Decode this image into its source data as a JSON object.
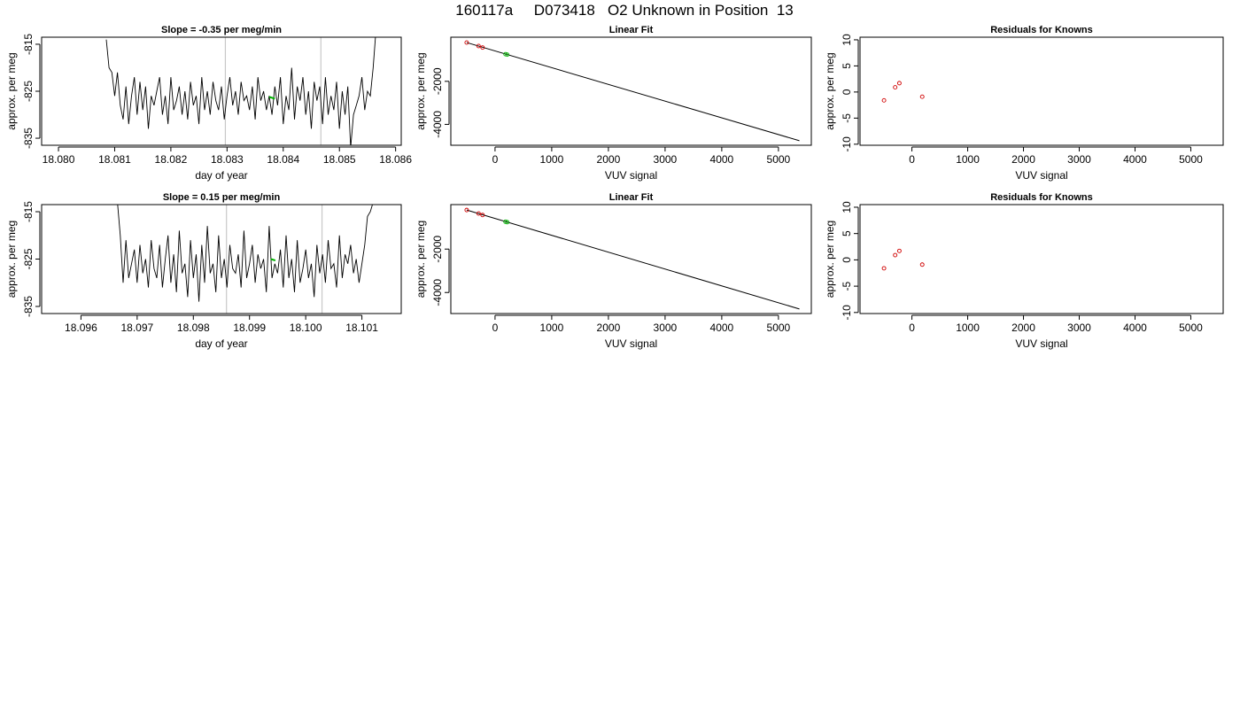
{
  "figure_title": "160117a     D073418   O2 Unknown in Position  13",
  "colors": {
    "trace": "#000000",
    "known_point": "#d00000",
    "unknown_point": "#00b000",
    "marker_line": "#c8c8c8",
    "axis": "#000000"
  },
  "chart_data": [
    {
      "type": "line",
      "title": "Slope =  -0.35  per meg/min",
      "xlabel": "day of year",
      "ylabel": "approx. per meg",
      "xlim": [
        18.0797,
        18.0861
      ],
      "ylim": [
        -836.5,
        -813.5
      ],
      "xticks": [
        18.08,
        18.081,
        18.082,
        18.083,
        18.084,
        18.085,
        18.086
      ],
      "xtick_labels": [
        "18.080",
        "18.081",
        "18.082",
        "18.083",
        "18.084",
        "18.085",
        "18.086"
      ],
      "yticks": [
        -815,
        -825,
        -835
      ],
      "ytick_labels": [
        "-815",
        "-825",
        "-835"
      ],
      "series": [
        {
          "x": [
            18.08085,
            18.0809,
            18.08095,
            18.081,
            18.08105,
            18.0811,
            18.08115,
            18.0812,
            18.08125,
            18.0813,
            18.08135,
            18.0814,
            18.08145,
            18.0815,
            18.08155,
            18.0816,
            18.08165,
            18.0817,
            18.08175,
            18.0818,
            18.08185,
            18.0819,
            18.08195,
            18.082,
            18.08205,
            18.0821,
            18.08215,
            18.0822,
            18.08225,
            18.0823,
            18.08235,
            18.0824,
            18.08245,
            18.0825,
            18.08255,
            18.0826,
            18.08265,
            18.0827,
            18.08275,
            18.0828,
            18.08285,
            18.0829,
            18.08295,
            18.083,
            18.08305,
            18.0831,
            18.08315,
            18.0832,
            18.08325,
            18.0833,
            18.08335,
            18.0834,
            18.08345,
            18.0835,
            18.08355,
            18.0836,
            18.08365,
            18.0837,
            18.08375,
            18.0838,
            18.08385,
            18.0839,
            18.08395,
            18.084,
            18.08405,
            18.0841,
            18.08415,
            18.0842,
            18.08425,
            18.0843,
            18.08435,
            18.0844,
            18.08445,
            18.0845,
            18.08455,
            18.0846,
            18.08465,
            18.0847,
            18.08475,
            18.0848,
            18.08485,
            18.0849,
            18.08495,
            18.085,
            18.08505,
            18.0851,
            18.08515,
            18.0852,
            18.08525,
            18.0853,
            18.08535,
            18.0854,
            18.08545,
            18.0855,
            18.08555,
            18.0856,
            18.08565
          ],
          "y": [
            -814,
            -820,
            -821,
            -826,
            -821,
            -828,
            -831,
            -824,
            -832,
            -826,
            -822,
            -830,
            -823,
            -829,
            -824,
            -833,
            -826,
            -828,
            -825,
            -822,
            -830,
            -826,
            -832,
            -822,
            -829,
            -827,
            -824,
            -830,
            -825,
            -831,
            -823,
            -828,
            -826,
            -832,
            -822,
            -829,
            -825,
            -830,
            -823,
            -827,
            -829,
            -824,
            -831,
            -826,
            -822,
            -828,
            -825,
            -830,
            -823,
            -827,
            -826,
            -829,
            -824,
            -831,
            -822,
            -827,
            -825,
            -829,
            -826,
            -830,
            -824,
            -828,
            -822,
            -832,
            -826,
            -829,
            -820,
            -831,
            -824,
            -827,
            -822,
            -830,
            -825,
            -833,
            -823,
            -827,
            -824,
            -832,
            -822,
            -830,
            -826,
            -829,
            -823,
            -833,
            -825,
            -830,
            -824,
            -837,
            -830,
            -828,
            -826,
            -822,
            -829,
            -825,
            -826,
            -820,
            -812
          ]
        }
      ],
      "markers_x": [
        18.08297,
        18.08467
      ],
      "highlight_x": [
        18.08375,
        18.08385
      ],
      "highlight_y": [
        -826.2,
        -826.6
      ]
    },
    {
      "type": "scatter",
      "title": "Linear Fit",
      "xlabel": "VUV signal",
      "ylabel": "approx. per meg",
      "xlim": [
        -780,
        5580
      ],
      "ylim": [
        -4970,
        50
      ],
      "xticks": [
        0,
        1000,
        2000,
        3000,
        4000,
        5000
      ],
      "xtick_labels": [
        "0",
        "1000",
        "2000",
        "3000",
        "4000",
        "5000"
      ],
      "yticks": [
        -2000,
        -4000
      ],
      "ytick_labels": [
        "-2000",
        "-4000"
      ],
      "fit_line": {
        "x": [
          -500,
          5370
        ],
        "y": [
          -200,
          -4760
        ]
      },
      "known_points": {
        "x": [
          -500,
          -290,
          -220
        ],
        "y": [
          -200,
          -360,
          -430
        ]
      },
      "unknown_points": {
        "x": [
          185,
          215
        ],
        "y": [
          -740,
          -760
        ]
      }
    },
    {
      "type": "scatter",
      "title": "Residuals for Knowns",
      "xlabel": "VUV signal",
      "ylabel": "approx. per meg",
      "xlim": [
        -930,
        5580
      ],
      "ylim": [
        -10.2,
        10.5
      ],
      "xticks": [
        0,
        1000,
        2000,
        3000,
        4000,
        5000
      ],
      "xtick_labels": [
        "0",
        "1000",
        "2000",
        "3000",
        "4000",
        "5000"
      ],
      "yticks": [
        10,
        5,
        0,
        -5,
        -10
      ],
      "ytick_labels": [
        "10",
        "5",
        "0",
        "-5",
        "-10"
      ],
      "points": {
        "x": [
          -500,
          -300,
          -225,
          185
        ],
        "y": [
          -1.6,
          0.9,
          1.7,
          -0.9
        ]
      }
    },
    {
      "type": "line",
      "title": "Slope =  0.15  per meg/min",
      "xlabel": "day of year",
      "ylabel": "approx. per meg",
      "xlim": [
        18.0953,
        18.1017
      ],
      "ylim": [
        -836.5,
        -813.5
      ],
      "xticks": [
        18.096,
        18.097,
        18.098,
        18.099,
        18.1,
        18.101
      ],
      "xtick_labels": [
        "18.096",
        "18.097",
        "18.098",
        "18.099",
        "18.100",
        "18.101"
      ],
      "yticks": [
        -815,
        -825,
        -835
      ],
      "ytick_labels": [
        "-815",
        "-825",
        "-835"
      ],
      "series": [
        {
          "x": [
            18.09665,
            18.0967,
            18.09675,
            18.0968,
            18.09685,
            18.0969,
            18.09695,
            18.097,
            18.09705,
            18.0971,
            18.09715,
            18.0972,
            18.09725,
            18.0973,
            18.09735,
            18.0974,
            18.09745,
            18.0975,
            18.09755,
            18.0976,
            18.09765,
            18.0977,
            18.09775,
            18.0978,
            18.09785,
            18.0979,
            18.09795,
            18.098,
            18.09805,
            18.0981,
            18.09815,
            18.0982,
            18.09825,
            18.0983,
            18.09835,
            18.0984,
            18.09845,
            18.0985,
            18.09855,
            18.0986,
            18.09865,
            18.0987,
            18.09875,
            18.0988,
            18.09885,
            18.0989,
            18.09895,
            18.099,
            18.09905,
            18.0991,
            18.09915,
            18.0992,
            18.09925,
            18.0993,
            18.09935,
            18.0994,
            18.09945,
            18.0995,
            18.09955,
            18.0996,
            18.09965,
            18.0997,
            18.09975,
            18.0998,
            18.09985,
            18.0999,
            18.09995,
            18.1,
            18.10005,
            18.1001,
            18.10015,
            18.1002,
            18.10025,
            18.1003,
            18.10035,
            18.1004,
            18.10045,
            18.1005,
            18.10055,
            18.1006,
            18.10065,
            18.1007,
            18.10075,
            18.1008,
            18.10085,
            18.1009,
            18.10095,
            18.101,
            18.10105,
            18.1011,
            18.10115,
            18.1012
          ],
          "y": [
            -813,
            -820,
            -830,
            -821,
            -829,
            -826,
            -823,
            -830,
            -822,
            -828,
            -825,
            -831,
            -821,
            -827,
            -829,
            -822,
            -831,
            -825,
            -820,
            -830,
            -824,
            -832,
            -819,
            -828,
            -826,
            -833,
            -821,
            -829,
            -824,
            -834,
            -822,
            -830,
            -818,
            -828,
            -826,
            -832,
            -820,
            -829,
            -825,
            -831,
            -822,
            -827,
            -828,
            -824,
            -831,
            -819,
            -829,
            -826,
            -822,
            -830,
            -824,
            -827,
            -825,
            -832,
            -818,
            -829,
            -826,
            -828,
            -823,
            -831,
            -820,
            -829,
            -825,
            -832,
            -821,
            -830,
            -827,
            -823,
            -829,
            -826,
            -833,
            -822,
            -828,
            -824,
            -830,
            -821,
            -827,
            -826,
            -831,
            -820,
            -829,
            -824,
            -826,
            -822,
            -828,
            -825,
            -830,
            -826,
            -822,
            -816,
            -815,
            -813
          ]
        }
      ],
      "markers_x": [
        18.09859,
        18.10029
      ],
      "highlight_x": [
        18.09938,
        18.09946
      ],
      "highlight_y": [
        -825.0,
        -825.3
      ]
    },
    {
      "type": "scatter",
      "title": "Linear Fit",
      "xlabel": "VUV signal",
      "ylabel": "approx. per meg",
      "xlim": [
        -780,
        5580
      ],
      "ylim": [
        -4970,
        50
      ],
      "xticks": [
        0,
        1000,
        2000,
        3000,
        4000,
        5000
      ],
      "xtick_labels": [
        "0",
        "1000",
        "2000",
        "3000",
        "4000",
        "5000"
      ],
      "yticks": [
        -2000,
        -4000
      ],
      "ytick_labels": [
        "-2000",
        "-4000"
      ],
      "fit_line": {
        "x": [
          -500,
          5370
        ],
        "y": [
          -200,
          -4760
        ]
      },
      "known_points": {
        "x": [
          -500,
          -290,
          -220
        ],
        "y": [
          -200,
          -360,
          -430
        ]
      },
      "unknown_points": {
        "x": [
          185,
          215
        ],
        "y": [
          -740,
          -760
        ]
      }
    },
    {
      "type": "scatter",
      "title": "Residuals for Knowns",
      "xlabel": "VUV signal",
      "ylabel": "approx. per meg",
      "xlim": [
        -930,
        5580
      ],
      "ylim": [
        -10.2,
        10.5
      ],
      "xticks": [
        0,
        1000,
        2000,
        3000,
        4000,
        5000
      ],
      "xtick_labels": [
        "0",
        "1000",
        "2000",
        "3000",
        "4000",
        "5000"
      ],
      "yticks": [
        10,
        5,
        0,
        -5,
        -10
      ],
      "ytick_labels": [
        "10",
        "5",
        "0",
        "-5",
        "-10"
      ],
      "points": {
        "x": [
          -500,
          -300,
          -225,
          185
        ],
        "y": [
          -1.6,
          0.9,
          1.7,
          -0.9
        ]
      }
    }
  ]
}
